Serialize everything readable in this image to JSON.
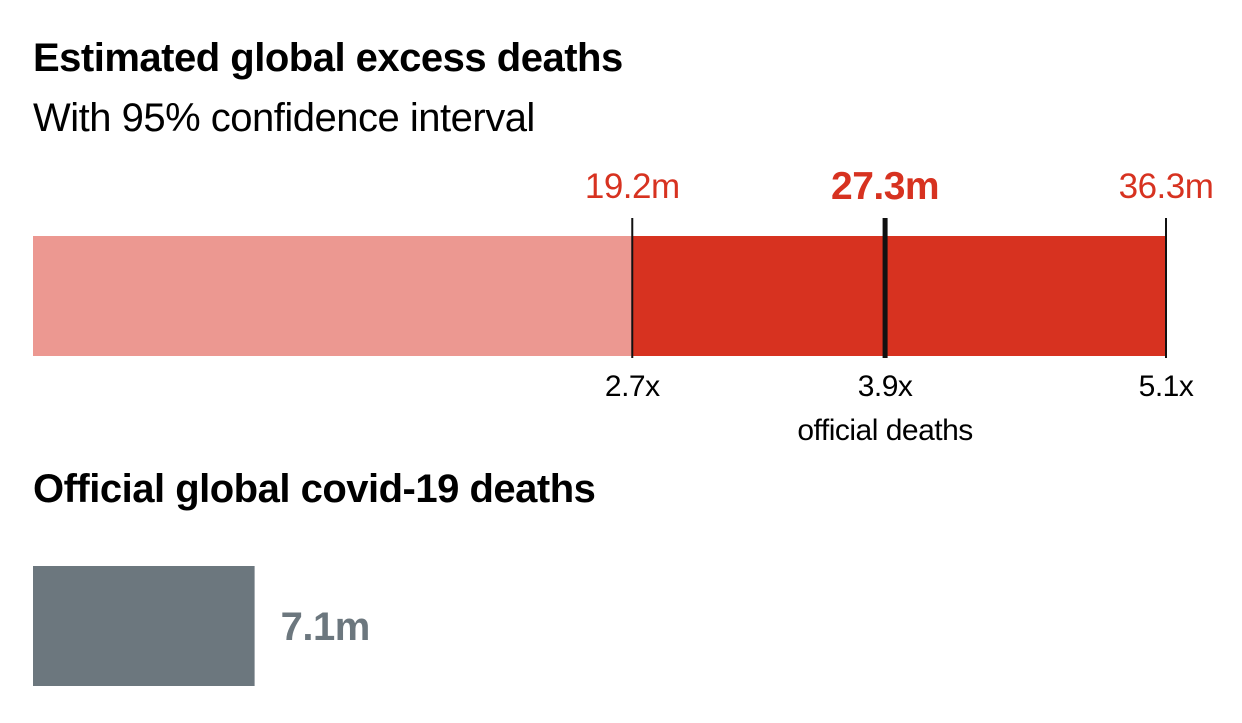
{
  "colors": {
    "lower_bar": "#ec9891",
    "interval_bar": "#d73220",
    "bound_label": "#d73220",
    "marker": "#111111",
    "official_bar": "#6c777e",
    "official_label": "#6c777e"
  },
  "chart_data": [
    {
      "type": "bar",
      "title": "Estimated global excess deaths",
      "subtitle": "With 95% confidence interval",
      "unit": "m",
      "lower": 19.2,
      "central": 27.3,
      "upper": 36.3,
      "lower_label": "19.2m",
      "central_label": "27.3m",
      "upper_label": "36.3m",
      "multiples": [
        {
          "value": 19.2,
          "label": "2.7x"
        },
        {
          "value": 27.3,
          "label": "3.9x"
        },
        {
          "value": 36.3,
          "label": "5.1x"
        }
      ],
      "multiples_caption": "official deaths"
    },
    {
      "type": "bar",
      "title": "Official global covid-19 deaths",
      "unit": "m",
      "value": 7.1,
      "value_label": "7.1m"
    }
  ]
}
